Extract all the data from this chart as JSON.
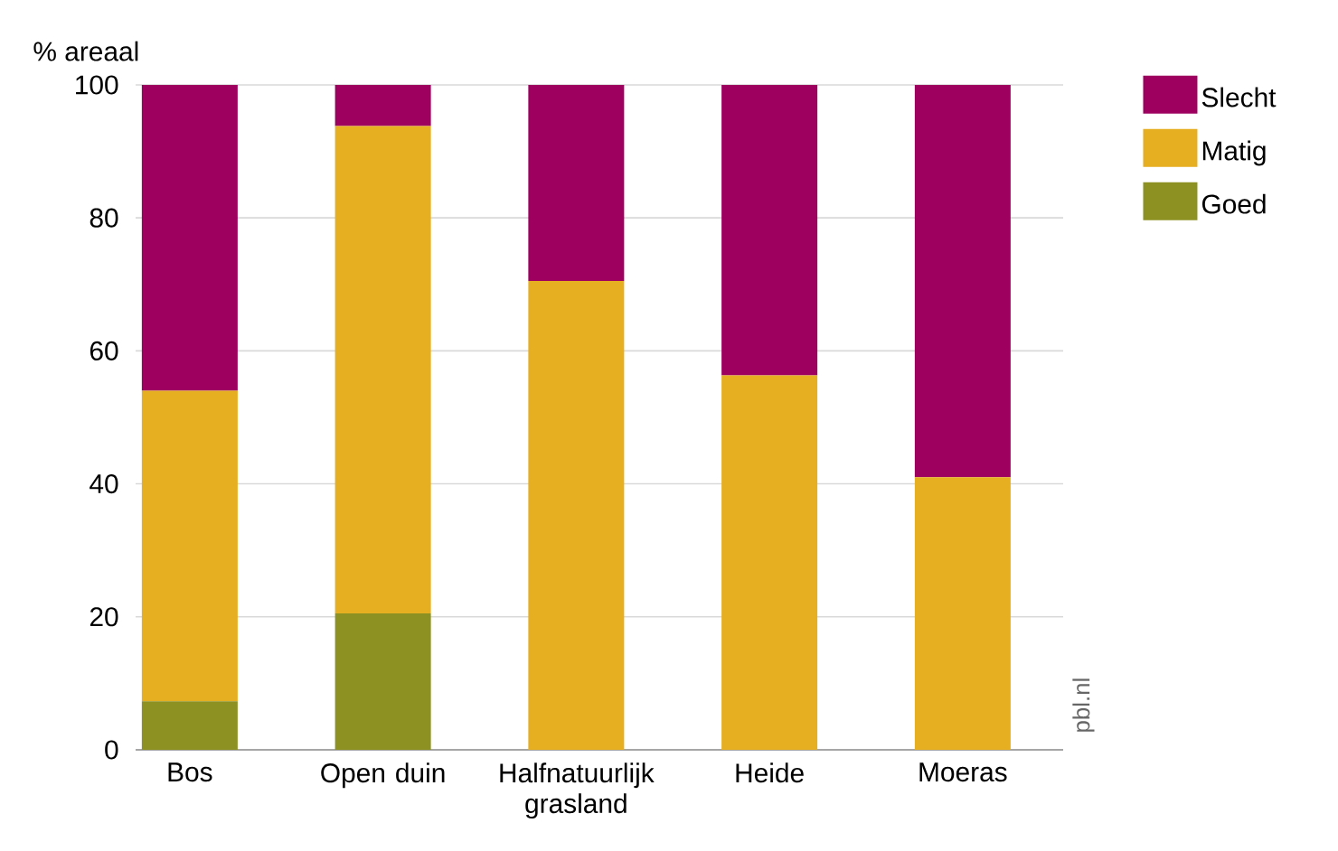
{
  "chart_data": {
    "type": "bar",
    "stacked": true,
    "ylabel": "% areaal",
    "categories": [
      "Bos",
      "Open duin",
      "Halfnatuurlijk grasland",
      "Heide",
      "Moeras"
    ],
    "series": [
      {
        "name": "Goed",
        "color": "#8c9122",
        "values": [
          7.3,
          20.5,
          0,
          0,
          0
        ]
      },
      {
        "name": "Matig",
        "color": "#e6ae21",
        "values": [
          46.7,
          73.3,
          70.5,
          56.3,
          41
        ]
      },
      {
        "name": "Slecht",
        "color": "#9e0060",
        "values": [
          46,
          6.2,
          29.5,
          43.7,
          59
        ]
      }
    ],
    "ylim": [
      0,
      100
    ],
    "yticks": [
      0,
      20,
      40,
      60,
      80,
      100
    ],
    "grid": "y",
    "legend": "top right",
    "annotations": [
      "pbl.nl"
    ]
  }
}
